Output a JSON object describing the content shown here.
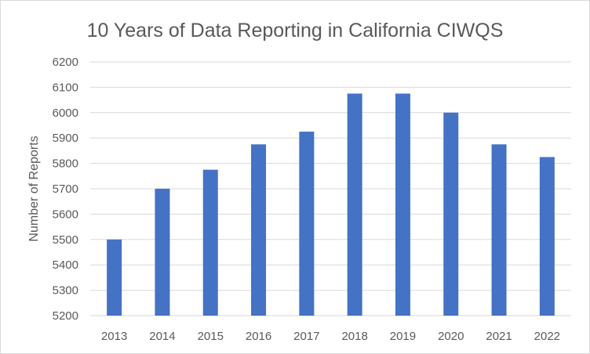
{
  "chart_data": {
    "type": "bar",
    "title": "10 Years of Data Reporting in California CIWQS",
    "xlabel": "",
    "ylabel": "Number of Reports",
    "categories": [
      "2013",
      "2014",
      "2015",
      "2016",
      "2017",
      "2018",
      "2019",
      "2020",
      "2021",
      "2022"
    ],
    "values": [
      5500,
      5700,
      5775,
      5875,
      5925,
      6075,
      6075,
      6000,
      5875,
      5825
    ],
    "ylim": [
      5200,
      6200
    ],
    "yticks": [
      "5200",
      "5300",
      "5400",
      "5500",
      "5600",
      "5700",
      "5800",
      "5900",
      "6000",
      "6100",
      "6200"
    ],
    "grid": true,
    "legend": "none",
    "bar_color": "#4472c4"
  }
}
